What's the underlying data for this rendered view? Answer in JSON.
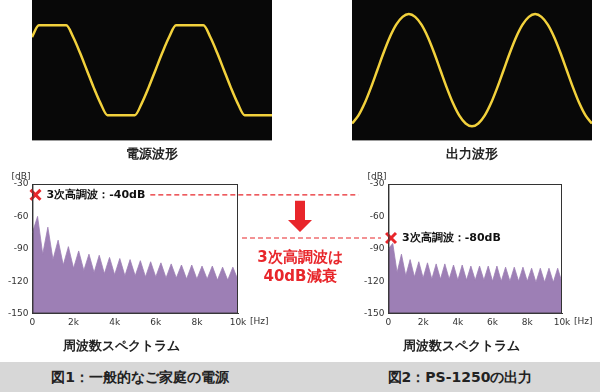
{
  "chart_data": [
    {
      "type": "line",
      "title": "電源波形",
      "color": "#f2d13c",
      "x": [
        0,
        1,
        2,
        3,
        4,
        5,
        6,
        7,
        8,
        9,
        10,
        11,
        12,
        13,
        14,
        15,
        16,
        17,
        18,
        19,
        20,
        21,
        22,
        23,
        24,
        25,
        26,
        27,
        28,
        29,
        30,
        31,
        32,
        33,
        34,
        35
      ],
      "values": [
        0.59,
        0.8,
        0.8,
        0.8,
        0.8,
        0.8,
        0.59,
        0.31,
        0,
        -0.31,
        -0.59,
        -0.8,
        -0.8,
        -0.8,
        -0.8,
        -0.8,
        -0.59,
        -0.31,
        0,
        0.31,
        0.59,
        0.8,
        0.8,
        0.8,
        0.8,
        0.8,
        0.59,
        0.31,
        0,
        -0.31,
        -0.59,
        -0.8,
        -0.8,
        -0.8,
        -0.8,
        -0.8
      ],
      "xlim": [
        0,
        35
      ],
      "ylim": [
        -1.25,
        1.25
      ],
      "grid": false,
      "tick_labels": false
    },
    {
      "type": "area",
      "title": "周波数スペクトラム",
      "xlabel": "[Hz]",
      "ylabel": "[dB]",
      "color": "#9d7fb5",
      "x": [
        0,
        250,
        500,
        750,
        1000,
        1250,
        1500,
        1750,
        2000,
        2250,
        2500,
        2750,
        3000,
        3250,
        3500,
        3750,
        4000,
        4250,
        4500,
        4750,
        5000,
        5250,
        5500,
        5750,
        6000,
        6250,
        6500,
        6750,
        7000,
        7250,
        7500,
        7750,
        8000,
        8250,
        8500,
        8750,
        9000,
        9250,
        9500,
        9750,
        10000
      ],
      "values": [
        -75,
        -60,
        -95,
        -70,
        -100,
        -82,
        -105,
        -88,
        -108,
        -92,
        -110,
        -95,
        -112,
        -96,
        -113,
        -98,
        -114,
        -99,
        -115,
        -100,
        -115,
        -101,
        -116,
        -102,
        -116,
        -103,
        -117,
        -104,
        -117,
        -105,
        -118,
        -105,
        -118,
        -106,
        -118,
        -106,
        -119,
        -107,
        -119,
        -107,
        -119
      ],
      "xlim": [
        0,
        10000
      ],
      "xticks": [
        0,
        {
          "value": 2000,
          "label": "2k"
        },
        {
          "value": 4000,
          "label": "4k"
        },
        {
          "value": 6000,
          "label": "6k"
        },
        {
          "value": 8000,
          "label": "8k"
        },
        {
          "value": 10000,
          "label": "10k"
        }
      ],
      "ylim": [
        -150,
        -30
      ],
      "yticks": [
        -150,
        -120,
        -90,
        -60,
        -30
      ],
      "grid": false,
      "annotations": [
        {
          "x": 150,
          "y": -40,
          "text": "3次高調波：-40dB",
          "marker": "x",
          "color": "#e8262b"
        }
      ]
    },
    {
      "type": "line",
      "title": "出力波形",
      "color": "#f2d13c",
      "x": [
        0,
        1,
        2,
        3,
        4,
        5,
        6,
        7,
        8,
        9,
        10,
        11,
        12,
        13,
        14,
        15,
        16,
        17,
        18,
        19,
        20,
        21,
        22,
        23,
        24,
        25,
        26,
        27,
        28,
        29,
        30,
        31,
        32,
        33,
        34,
        35,
        36,
        37,
        38
      ],
      "values": [
        -0.95,
        -0.81,
        -0.59,
        -0.31,
        0,
        0.31,
        0.59,
        0.81,
        0.95,
        1,
        0.95,
        0.81,
        0.59,
        0.31,
        0,
        -0.31,
        -0.59,
        -0.81,
        -0.95,
        -1,
        -0.95,
        -0.81,
        -0.59,
        -0.31,
        0,
        0.31,
        0.59,
        0.81,
        0.95,
        1,
        0.95,
        0.81,
        0.59,
        0.31,
        0,
        -0.31,
        -0.59,
        -0.81,
        -0.95
      ],
      "xlim": [
        0,
        38
      ],
      "ylim": [
        -1.25,
        1.25
      ],
      "grid": false,
      "tick_labels": false
    },
    {
      "type": "area",
      "title": "周波数スペクトラム",
      "xlabel": "[Hz]",
      "ylabel": "[dB]",
      "color": "#9d7fb5",
      "x": [
        0,
        250,
        500,
        750,
        1000,
        1250,
        1500,
        1750,
        2000,
        2250,
        2500,
        2750,
        3000,
        3250,
        3500,
        3750,
        4000,
        4250,
        4500,
        4750,
        5000,
        5250,
        5500,
        5750,
        6000,
        6250,
        6500,
        6750,
        7000,
        7250,
        7500,
        7750,
        8000,
        8250,
        8500,
        8750,
        9000,
        9250,
        9500,
        9750,
        10000
      ],
      "values": [
        -90,
        -85,
        -112,
        -95,
        -115,
        -100,
        -116,
        -102,
        -117,
        -103,
        -118,
        -104,
        -118,
        -104,
        -118,
        -105,
        -119,
        -105,
        -119,
        -106,
        -119,
        -106,
        -119,
        -106,
        -120,
        -106,
        -120,
        -107,
        -120,
        -107,
        -120,
        -107,
        -120,
        -108,
        -121,
        -108,
        -121,
        -108,
        -121,
        -108,
        -121
      ],
      "xlim": [
        0,
        10000
      ],
      "xticks": [
        0,
        {
          "value": 2000,
          "label": "2k"
        },
        {
          "value": 4000,
          "label": "4k"
        },
        {
          "value": 6000,
          "label": "6k"
        },
        {
          "value": 8000,
          "label": "8k"
        },
        {
          "value": 10000,
          "label": "10k"
        }
      ],
      "ylim": [
        -150,
        -30
      ],
      "yticks": [
        -150,
        -120,
        -90,
        -60,
        -30
      ],
      "grid": false,
      "annotations": [
        {
          "x": 150,
          "y": -80,
          "text": "3次高調波：-80dB",
          "marker": "x",
          "color": "#e8262b"
        }
      ]
    }
  ],
  "captions": [
    "図1：一般的なご家庭の電源",
    "図2：PS-1250の出力"
  ],
  "comparison": {
    "text": [
      "3次高調波は",
      "40dB減衰"
    ],
    "color": "#e8262b"
  }
}
